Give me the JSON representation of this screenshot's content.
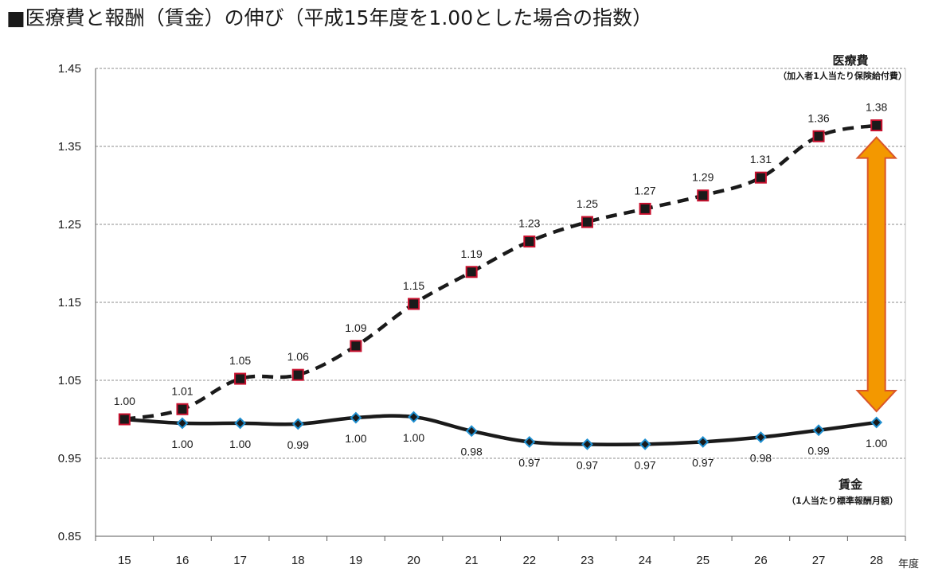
{
  "chart_data": {
    "type": "line",
    "title": "■医療費と報酬（賃金）の伸び（平成15年度を1.00とした場合の指数）",
    "x": [
      "15",
      "16",
      "17",
      "18",
      "19",
      "20",
      "21",
      "22",
      "23",
      "24",
      "25",
      "26",
      "27",
      "28"
    ],
    "xlabel": "年度",
    "ylim": [
      0.85,
      1.45
    ],
    "yticks": [
      "0.85",
      "0.95",
      "1.05",
      "1.15",
      "1.25",
      "1.35",
      "1.45"
    ],
    "grid": true,
    "series": [
      {
        "name": "医療費",
        "subtitle": "（加入者1人当たり保険給付費）",
        "style": "dashed",
        "marker": "square",
        "color": "#1a1a1a",
        "marker_edge": "#c8102e",
        "values": [
          1.0,
          1.013,
          1.052,
          1.057,
          1.094,
          1.148,
          1.189,
          1.228,
          1.253,
          1.27,
          1.287,
          1.31,
          1.363,
          1.377
        ],
        "labels": [
          "1.00",
          "1.01",
          "1.05",
          "1.06",
          "1.09",
          "1.15",
          "1.19",
          "1.23",
          "1.25",
          "1.27",
          "1.29",
          "1.31",
          "1.36",
          "1.38"
        ]
      },
      {
        "name": "賃金",
        "subtitle": "（1人当たり標準報酬月額）",
        "style": "solid",
        "marker": "diamond",
        "color": "#1a1a1a",
        "marker_edge": "#1f8fd0",
        "values": [
          1.0,
          0.995,
          0.995,
          0.994,
          1.002,
          1.003,
          0.985,
          0.971,
          0.968,
          0.968,
          0.971,
          0.977,
          0.986,
          0.996
        ],
        "labels": [
          "1.00",
          "1.00",
          "1.00",
          "0.99",
          "1.00",
          "1.00",
          "0.98",
          "0.97",
          "0.97",
          "0.97",
          "0.97",
          "0.98",
          "0.99",
          "1.00"
        ]
      }
    ],
    "annotation": {
      "type": "double-arrow",
      "x": "28",
      "from": 1.0,
      "to": 1.38,
      "color": "#f39800"
    }
  }
}
